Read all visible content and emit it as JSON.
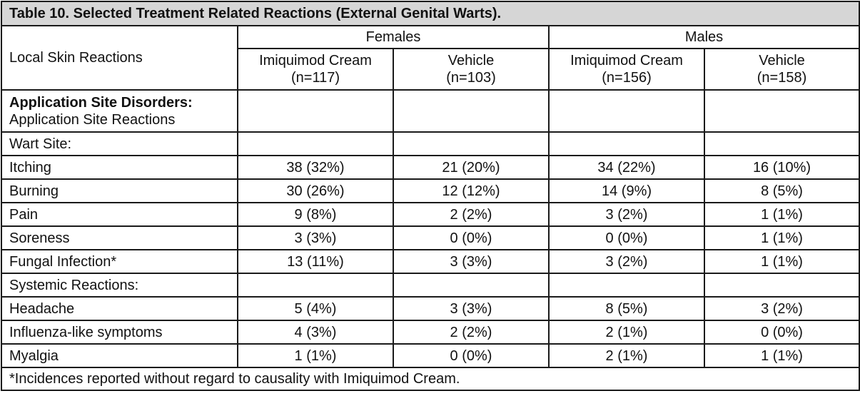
{
  "caption": "Table 10. Selected Treatment Related Reactions (External Genital Warts).",
  "header": {
    "row_label": "Local Skin Reactions",
    "groups": [
      "Females",
      "Males"
    ],
    "columns": [
      {
        "name": "Imiquimod Cream",
        "n": "(n=117)"
      },
      {
        "name": "Vehicle",
        "n": "(n=103)"
      },
      {
        "name": "Imiquimod Cream",
        "n": "(n=156)"
      },
      {
        "name": "Vehicle",
        "n": "(n=158)"
      }
    ]
  },
  "section1": {
    "title": "Application Site Disorders:",
    "subtitle": "Application Site Reactions"
  },
  "rows": [
    {
      "label": "Wart Site:",
      "bold": true,
      "values": [
        "",
        "",
        "",
        ""
      ]
    },
    {
      "label": "Itching",
      "bold": false,
      "values": [
        "38 (32%)",
        "21 (20%)",
        "34 (22%)",
        "16 (10%)"
      ]
    },
    {
      "label": "Burning",
      "bold": false,
      "values": [
        "30 (26%)",
        "12 (12%)",
        "14 (9%)",
        "8 (5%)"
      ]
    },
    {
      "label": "Pain",
      "bold": false,
      "values": [
        "9 (8%)",
        "2 (2%)",
        "3 (2%)",
        "1 (1%)"
      ]
    },
    {
      "label": "Soreness",
      "bold": false,
      "values": [
        "3 (3%)",
        "0 (0%)",
        "0 (0%)",
        "1 (1%)"
      ]
    },
    {
      "label": "Fungal Infection*",
      "bold": true,
      "values": [
        "13 (11%)",
        "3 (3%)",
        "3 (2%)",
        "1 (1%)"
      ]
    },
    {
      "label": "Systemic Reactions:",
      "bold": true,
      "values": [
        "",
        "",
        "",
        ""
      ]
    },
    {
      "label": "Headache",
      "bold": false,
      "values": [
        "5 (4%)",
        "3 (3%)",
        "8 (5%)",
        "3 (2%)"
      ]
    },
    {
      "label": "Influenza-like symptoms",
      "bold": false,
      "values": [
        "4 (3%)",
        "2 (2%)",
        "2 (1%)",
        "0 (0%)"
      ]
    },
    {
      "label": "Myalgia",
      "bold": false,
      "values": [
        "1 (1%)",
        "0 (0%)",
        "2 (1%)",
        "1 (1%)"
      ]
    }
  ],
  "footnote": "*Incidences reported without regard to causality with Imiquimod Cream."
}
